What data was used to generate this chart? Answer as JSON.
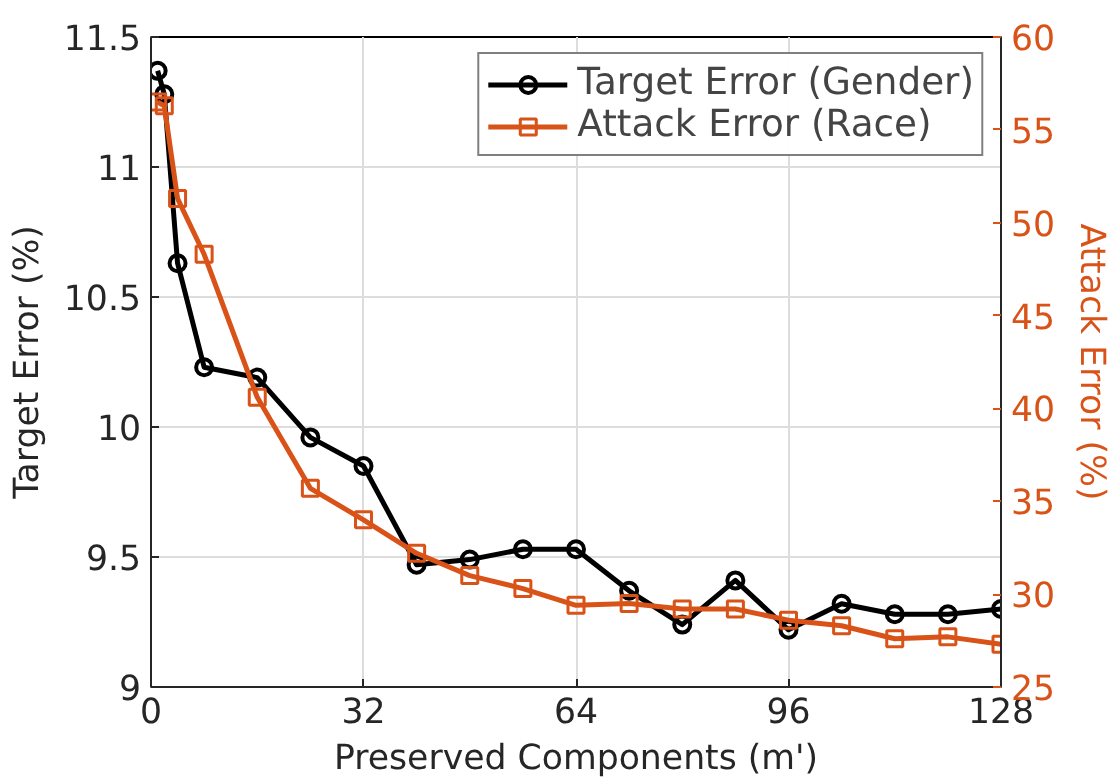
{
  "chart_data": {
    "type": "line",
    "xlabel": "Preserved Components (m')",
    "ylabel": "Target Error (%)",
    "y2label": "Attack Error (%)",
    "x": [
      1,
      2,
      4,
      8,
      16,
      24,
      32,
      40,
      48,
      56,
      64,
      72,
      80,
      88,
      96,
      104,
      112,
      120,
      128
    ],
    "series": [
      {
        "name": "Target Error (Gender)",
        "color": "#000000",
        "marker": "circle",
        "values": [
          11.37,
          11.28,
          10.63,
          10.23,
          10.19,
          9.96,
          9.85,
          9.47,
          9.49,
          9.53,
          9.53,
          9.37,
          9.24,
          9.41,
          9.22,
          9.32,
          9.28,
          9.28,
          9.3
        ]
      },
      {
        "name": "Attack Error (Race)",
        "color": "#d95319",
        "marker": "square",
        "axis": "y2",
        "values": [
          56.5,
          56.3,
          51.3,
          48.3,
          40.6,
          35.7,
          34.0,
          32.2,
          31.0,
          30.3,
          29.4,
          29.5,
          29.2,
          29.2,
          28.6,
          28.3,
          27.6,
          27.7,
          27.3
        ]
      }
    ],
    "xlim": [
      0,
      128
    ],
    "xticks": [
      0,
      32,
      64,
      96,
      128
    ],
    "ylim": [
      9,
      11.5
    ],
    "yticks": [
      9,
      9.5,
      10,
      10.5,
      11,
      11.5
    ],
    "y2lim": [
      25,
      60
    ],
    "y2ticks": [
      25,
      30,
      35,
      40,
      45,
      50,
      55,
      60
    ],
    "grid": true,
    "legend": "top right",
    "line_style": "solid"
  }
}
